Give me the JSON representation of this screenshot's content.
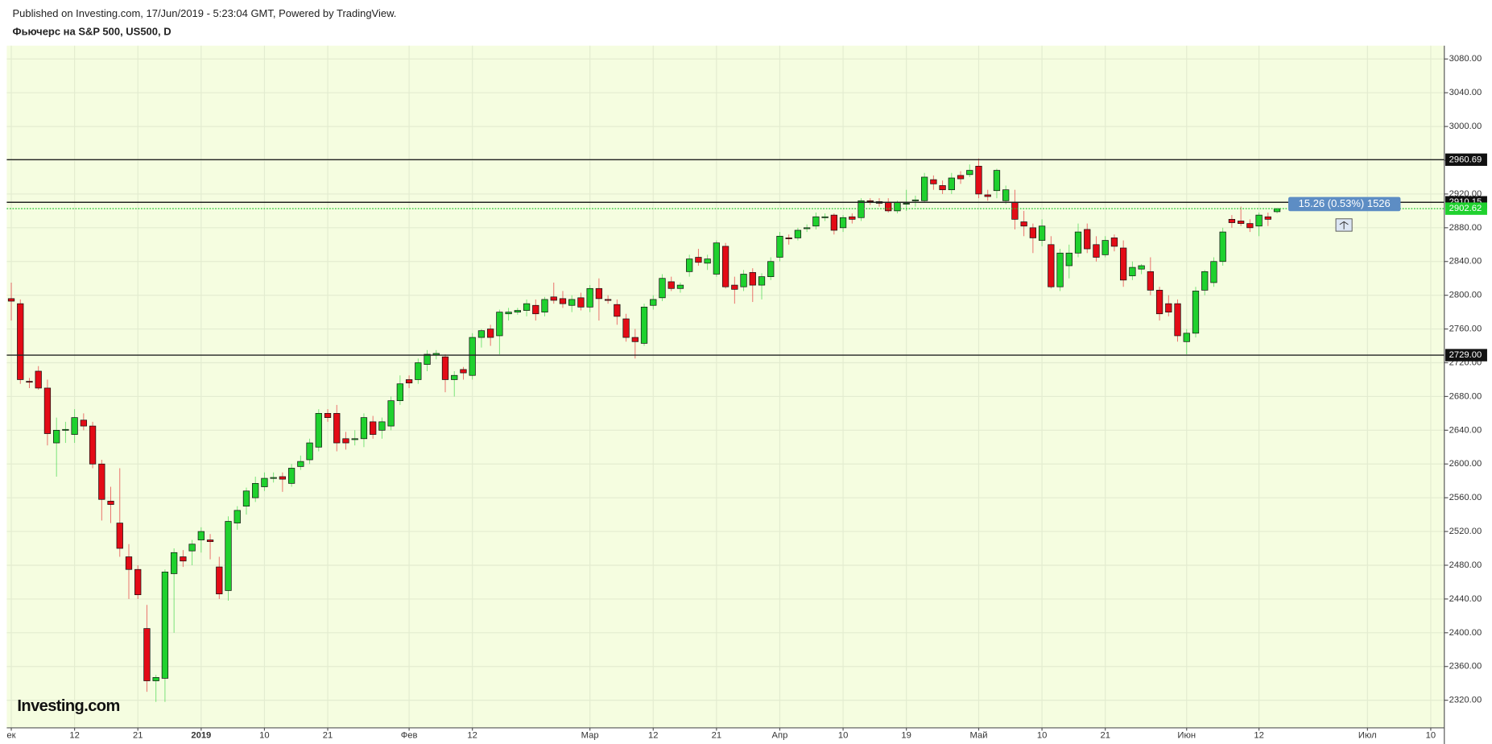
{
  "header": "Published on Investing.com, 17/Jun/2019 - 5:23:04 GMT, Powered by TradingView.",
  "chart_data": {
    "type": "candlestick",
    "title": "Фьючерс на S&P 500, US500, D",
    "logo": "Investing.com",
    "categories": [
      "ек",
      null,
      null,
      null,
      null,
      null,
      null,
      "12",
      null,
      null,
      null,
      null,
      null,
      null,
      "21",
      null,
      null,
      null,
      null,
      null,
      null,
      "2019",
      null,
      null,
      null,
      null,
      null,
      null,
      "10",
      null,
      null,
      null,
      null,
      null,
      null,
      "21",
      null,
      null,
      null,
      null,
      null,
      null,
      null,
      null,
      "Фев",
      null,
      null,
      null,
      null,
      null,
      null,
      "12",
      null,
      null,
      null,
      null,
      null,
      null,
      null,
      null,
      null,
      null,
      null,
      null,
      "Мар",
      null,
      null,
      null,
      null,
      null,
      null,
      "12",
      null,
      null,
      null,
      null,
      null,
      null,
      "21",
      null,
      null,
      null,
      null,
      null,
      null,
      "Апр",
      null,
      null,
      null,
      null,
      null,
      null,
      "10",
      null,
      null,
      null,
      null,
      null,
      null,
      "19",
      null,
      null,
      null,
      null,
      null,
      null,
      null,
      "Май",
      null,
      null,
      null,
      null,
      null,
      null,
      "10",
      null,
      null,
      null,
      null,
      null,
      null,
      "21",
      null,
      null,
      null,
      null,
      null,
      null,
      null,
      null,
      "Июн",
      null,
      null,
      null,
      null,
      null,
      null,
      null,
      "12",
      null,
      null,
      null,
      null,
      null,
      null,
      null,
      null,
      null,
      null,
      null,
      "Июл",
      null,
      null,
      null,
      null,
      null,
      null,
      "10",
      null
    ],
    "ohlc": [
      [
        2796,
        2815,
        2770,
        2793
      ],
      [
        2790,
        2795,
        2695,
        2700
      ],
      [
        2698,
        2702,
        2690,
        2697
      ],
      [
        2710,
        2716,
        2688,
        2690
      ],
      [
        2690,
        2700,
        2622,
        2636
      ],
      [
        2625,
        2655,
        2585,
        2640
      ],
      [
        2641,
        2650,
        2625,
        2641
      ],
      [
        2635,
        2665,
        2625,
        2655
      ],
      [
        2652,
        2660,
        2640,
        2645
      ],
      [
        2645,
        2650,
        2595,
        2600
      ],
      [
        2600,
        2605,
        2533,
        2558
      ],
      [
        2556,
        2573,
        2530,
        2552
      ],
      [
        2530,
        2595,
        2490,
        2500
      ],
      [
        2490,
        2505,
        2440,
        2475
      ],
      [
        2475,
        2480,
        2440,
        2445
      ],
      [
        2405,
        2433,
        2330,
        2343
      ],
      [
        2343,
        2350,
        2318,
        2347
      ],
      [
        2346,
        2475,
        2318,
        2472
      ],
      [
        2470,
        2500,
        2400,
        2495
      ],
      [
        2490,
        2498,
        2478,
        2485
      ],
      [
        2497,
        2510,
        2480,
        2505
      ],
      [
        2510,
        2525,
        2495,
        2520
      ],
      [
        2510,
        2517,
        2487,
        2508
      ],
      [
        2478,
        2490,
        2440,
        2446
      ],
      [
        2450,
        2538,
        2438,
        2532
      ],
      [
        2530,
        2550,
        2522,
        2545
      ],
      [
        2550,
        2572,
        2540,
        2568
      ],
      [
        2560,
        2585,
        2555,
        2577
      ],
      [
        2573,
        2590,
        2568,
        2583
      ],
      [
        2584,
        2590,
        2578,
        2584
      ],
      [
        2585,
        2590,
        2567,
        2582
      ],
      [
        2577,
        2600,
        2573,
        2595
      ],
      [
        2597,
        2610,
        2593,
        2603
      ],
      [
        2605,
        2630,
        2600,
        2625
      ],
      [
        2620,
        2665,
        2615,
        2660
      ],
      [
        2660,
        2665,
        2650,
        2655
      ],
      [
        2660,
        2670,
        2615,
        2625
      ],
      [
        2630,
        2638,
        2617,
        2625
      ],
      [
        2630,
        2640,
        2622,
        2630
      ],
      [
        2630,
        2660,
        2620,
        2655
      ],
      [
        2650,
        2657,
        2630,
        2635
      ],
      [
        2640,
        2655,
        2630,
        2650
      ],
      [
        2645,
        2680,
        2640,
        2675
      ],
      [
        2675,
        2705,
        2670,
        2695
      ],
      [
        2700,
        2705,
        2690,
        2696
      ],
      [
        2700,
        2725,
        2695,
        2720
      ],
      [
        2718,
        2735,
        2710,
        2730
      ],
      [
        2729,
        2735,
        2724,
        2731
      ],
      [
        2727,
        2730,
        2685,
        2700
      ],
      [
        2700,
        2710,
        2680,
        2705
      ],
      [
        2712,
        2715,
        2700,
        2708
      ],
      [
        2705,
        2755,
        2700,
        2750
      ],
      [
        2750,
        2760,
        2738,
        2758
      ],
      [
        2760,
        2765,
        2740,
        2750
      ],
      [
        2752,
        2783,
        2730,
        2780
      ],
      [
        2778,
        2785,
        2770,
        2780
      ],
      [
        2780,
        2785,
        2777,
        2782
      ],
      [
        2782,
        2795,
        2775,
        2790
      ],
      [
        2788,
        2795,
        2770,
        2778
      ],
      [
        2780,
        2798,
        2775,
        2795
      ],
      [
        2798,
        2815,
        2790,
        2794
      ],
      [
        2796,
        2805,
        2785,
        2790
      ],
      [
        2788,
        2800,
        2780,
        2795
      ],
      [
        2797,
        2803,
        2782,
        2786
      ],
      [
        2786,
        2812,
        2780,
        2808
      ],
      [
        2808,
        2820,
        2770,
        2796
      ],
      [
        2795,
        2800,
        2790,
        2794
      ],
      [
        2789,
        2795,
        2765,
        2775
      ],
      [
        2772,
        2778,
        2745,
        2750
      ],
      [
        2750,
        2760,
        2725,
        2745
      ],
      [
        2743,
        2790,
        2740,
        2786
      ],
      [
        2788,
        2800,
        2783,
        2795
      ],
      [
        2797,
        2825,
        2793,
        2820
      ],
      [
        2816,
        2822,
        2805,
        2808
      ],
      [
        2808,
        2815,
        2803,
        2812
      ],
      [
        2828,
        2848,
        2822,
        2843
      ],
      [
        2845,
        2855,
        2835,
        2839
      ],
      [
        2838,
        2848,
        2830,
        2843
      ],
      [
        2825,
        2865,
        2822,
        2862
      ],
      [
        2858,
        2862,
        2808,
        2810
      ],
      [
        2812,
        2822,
        2790,
        2807
      ],
      [
        2810,
        2830,
        2805,
        2825
      ],
      [
        2827,
        2832,
        2792,
        2812
      ],
      [
        2812,
        2826,
        2795,
        2822
      ],
      [
        2822,
        2845,
        2818,
        2840
      ],
      [
        2845,
        2875,
        2840,
        2870
      ],
      [
        2868,
        2872,
        2860,
        2867
      ],
      [
        2868,
        2880,
        2865,
        2877
      ],
      [
        2879,
        2884,
        2875,
        2880
      ],
      [
        2882,
        2898,
        2878,
        2893
      ],
      [
        2892,
        2897,
        2888,
        2893
      ],
      [
        2895,
        2897,
        2872,
        2877
      ],
      [
        2880,
        2895,
        2875,
        2892
      ],
      [
        2893,
        2897,
        2885,
        2890
      ],
      [
        2892,
        2915,
        2888,
        2912
      ],
      [
        2912,
        2915,
        2907,
        2911
      ],
      [
        2911,
        2915,
        2905,
        2909
      ],
      [
        2910,
        2915,
        2898,
        2900
      ],
      [
        2900,
        2912,
        2897,
        2910
      ],
      [
        2908,
        2925,
        2900,
        2909
      ],
      [
        2912,
        2918,
        2905,
        2913
      ],
      [
        2912,
        2945,
        2910,
        2940
      ],
      [
        2937,
        2942,
        2925,
        2932
      ],
      [
        2930,
        2936,
        2920,
        2925
      ],
      [
        2925,
        2945,
        2920,
        2939
      ],
      [
        2942,
        2947,
        2932,
        2938
      ],
      [
        2943,
        2955,
        2940,
        2948
      ],
      [
        2953,
        2962,
        2915,
        2920
      ],
      [
        2919,
        2925,
        2912,
        2917
      ],
      [
        2924,
        2950,
        2915,
        2948
      ],
      [
        2912,
        2930,
        2908,
        2925
      ],
      [
        2910,
        2925,
        2878,
        2890
      ],
      [
        2887,
        2900,
        2870,
        2882
      ],
      [
        2880,
        2885,
        2850,
        2868
      ],
      [
        2865,
        2890,
        2858,
        2882
      ],
      [
        2860,
        2870,
        2808,
        2810
      ],
      [
        2810,
        2855,
        2805,
        2850
      ],
      [
        2835,
        2860,
        2820,
        2850
      ],
      [
        2850,
        2885,
        2845,
        2875
      ],
      [
        2878,
        2885,
        2850,
        2855
      ],
      [
        2860,
        2870,
        2840,
        2845
      ],
      [
        2848,
        2870,
        2845,
        2865
      ],
      [
        2868,
        2872,
        2852,
        2858
      ],
      [
        2856,
        2865,
        2810,
        2818
      ],
      [
        2823,
        2840,
        2818,
        2833
      ],
      [
        2831,
        2837,
        2825,
        2835
      ],
      [
        2828,
        2845,
        2800,
        2806
      ],
      [
        2806,
        2810,
        2770,
        2778
      ],
      [
        2790,
        2800,
        2775,
        2780
      ],
      [
        2790,
        2795,
        2745,
        2752
      ],
      [
        2745,
        2760,
        2730,
        2755
      ],
      [
        2755,
        2810,
        2750,
        2805
      ],
      [
        2806,
        2830,
        2800,
        2828
      ],
      [
        2815,
        2845,
        2810,
        2840
      ],
      [
        2840,
        2880,
        2835,
        2875
      ],
      [
        2890,
        2895,
        2880,
        2886
      ],
      [
        2888,
        2905,
        2882,
        2885
      ],
      [
        2885,
        2890,
        2875,
        2880
      ],
      [
        2882,
        2898,
        2870,
        2895
      ],
      [
        2893,
        2898,
        2882,
        2890
      ],
      [
        2899,
        2903,
        2897,
        2902.62
      ],
      null,
      null,
      null,
      null,
      null,
      null,
      null,
      null,
      null,
      null,
      null,
      null,
      null,
      null,
      null,
      null,
      null,
      null
    ],
    "up_color": "#1fd12e",
    "down_color": "#e30b16",
    "ylim": [
      2287.3,
      3095.8
    ],
    "yticks": [
      {
        "value": 2320,
        "label": "2320.00"
      },
      {
        "value": 2360,
        "label": "2360.00"
      },
      {
        "value": 2400,
        "label": "2400.00"
      },
      {
        "value": 2440,
        "label": "2440.00"
      },
      {
        "value": 2480,
        "label": "2480.00"
      },
      {
        "value": 2520,
        "label": "2520.00"
      },
      {
        "value": 2560,
        "label": "2560.00"
      },
      {
        "value": 2600,
        "label": "2600.00"
      },
      {
        "value": 2640,
        "label": "2640.00"
      },
      {
        "value": 2680,
        "label": "2680.00"
      },
      {
        "value": 2720,
        "label": "2720.00"
      },
      {
        "value": 2760,
        "label": "2760.00"
      },
      {
        "value": 2800,
        "label": "2800.00"
      },
      {
        "value": 2840,
        "label": "2840.00"
      },
      {
        "value": 2880,
        "label": "2880.00"
      },
      {
        "value": 2920,
        "label": "2920.00"
      },
      {
        "value": 2960,
        "label": "2960.00"
      },
      {
        "value": 3000,
        "label": "3000.00"
      },
      {
        "value": 3040,
        "label": "3040.00"
      },
      {
        "value": 3080,
        "label": "3080.00"
      }
    ],
    "levels": [
      2960.69,
      2910.15,
      {
        "value": 2729,
        "label": "2729.00"
      }
    ],
    "last_price": 2902.62,
    "measure_label": "15.26 (0.53%) 1526",
    "grid": true
  }
}
